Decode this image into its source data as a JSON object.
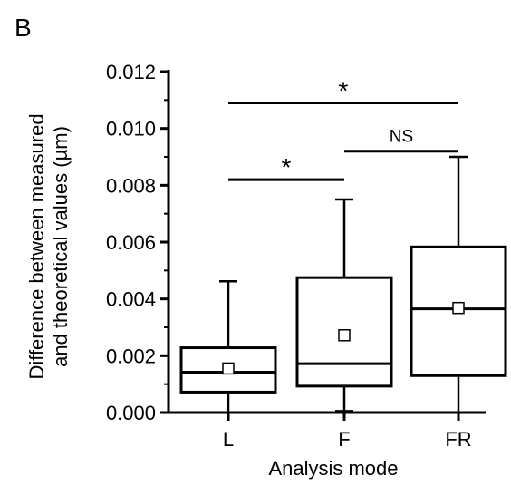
{
  "panel_label": "B",
  "chart_data": {
    "type": "box",
    "xlabel": "Analysis mode",
    "ylabel_lines": [
      "Difference between measured",
      "and theoretical values (µm)"
    ],
    "ylim": [
      0,
      0.012
    ],
    "yticks": [
      "0.000",
      "0.002",
      "0.004",
      "0.006",
      "0.008",
      "0.010",
      "0.012"
    ],
    "categories": [
      "L",
      "F",
      "FR"
    ],
    "boxes": [
      {
        "category": "L",
        "whisker_low": 0.0,
        "q1": 0.00072,
        "median": 0.00142,
        "q3": 0.00228,
        "whisker_high": 0.00462,
        "mean": 0.00155
      },
      {
        "category": "F",
        "whisker_low": 5e-05,
        "q1": 0.00093,
        "median": 0.00172,
        "q3": 0.00475,
        "whisker_high": 0.0075,
        "mean": 0.00272
      },
      {
        "category": "FR",
        "whisker_low": 0.0,
        "q1": 0.0013,
        "median": 0.00365,
        "q3": 0.00583,
        "whisker_high": 0.009,
        "mean": 0.00368
      }
    ],
    "significance": [
      {
        "from": "L",
        "to": "FR",
        "y": 0.0109,
        "label": "*"
      },
      {
        "from": "F",
        "to": "FR",
        "y": 0.0092,
        "label": "NS"
      },
      {
        "from": "L",
        "to": "F",
        "y": 0.0082,
        "label": "*"
      }
    ]
  }
}
